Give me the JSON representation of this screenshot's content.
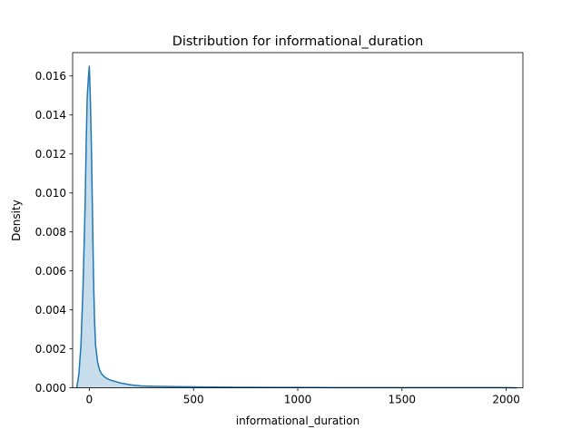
{
  "chart_data": {
    "type": "area",
    "title": "Distribution for informational_duration",
    "xlabel": "informational_duration",
    "ylabel": "Density",
    "xlim": [
      -80,
      2080
    ],
    "ylim": [
      0,
      0.0172
    ],
    "x_ticks": [
      0,
      500,
      1000,
      1500,
      2000
    ],
    "x_tick_labels": [
      "0",
      "500",
      "1000",
      "1500",
      "2000"
    ],
    "y_ticks": [
      0,
      0.002,
      0.004,
      0.006,
      0.008,
      0.01,
      0.012,
      0.014,
      0.016
    ],
    "y_tick_labels": [
      "0.000",
      "0.002",
      "0.004",
      "0.006",
      "0.008",
      "0.010",
      "0.012",
      "0.014",
      "0.016"
    ],
    "grid": false,
    "series": [
      {
        "color": "#1f77b4",
        "fill_color": "#1f77b4",
        "fill_opacity": 0.25,
        "x": [
          -60,
          -50,
          -40,
          -30,
          -20,
          -15,
          -10,
          -5,
          0,
          5,
          10,
          15,
          20,
          25,
          30,
          40,
          50,
          60,
          80,
          100,
          150,
          200,
          250,
          300,
          400,
          500,
          600,
          700,
          800,
          900,
          1000,
          1200,
          1400,
          1600,
          1800,
          2000,
          2050
        ],
        "y": [
          0,
          0.0007,
          0.0022,
          0.0052,
          0.0094,
          0.0125,
          0.0149,
          0.0158,
          0.0165,
          0.0148,
          0.0124,
          0.0092,
          0.0058,
          0.0035,
          0.0022,
          0.0013,
          0.0009,
          0.0007,
          0.0005,
          0.0004,
          0.00025,
          0.00015,
          0.0001,
          8e-05,
          6e-05,
          5e-05,
          4e-05,
          3e-05,
          3e-05,
          2e-05,
          2e-05,
          1e-05,
          1e-05,
          1e-05,
          1e-05,
          1e-05,
          0
        ]
      }
    ]
  }
}
